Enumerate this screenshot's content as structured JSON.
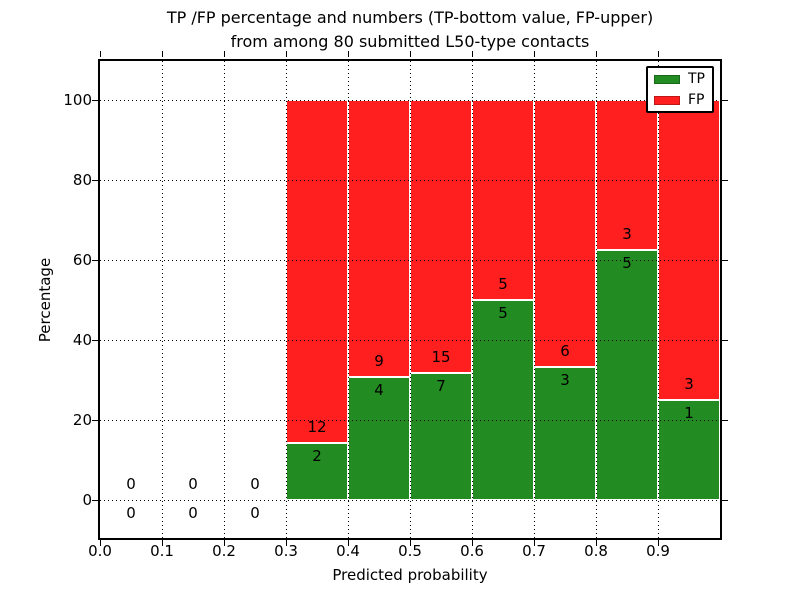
{
  "title_line1": "TP /FP percentage and numbers (TP-bottom value, FP-upper)",
  "title_line2": "from among 80 submitted L50-type contacts",
  "chart_data": {
    "type": "bar",
    "stacked": true,
    "title": "TP /FP percentage and numbers (TP-bottom value, FP-upper)\nfrom among 80 submitted L50-type contacts",
    "xlabel": "Predicted probability",
    "ylabel": "Percentage",
    "total_submitted": 80,
    "xlim": [
      0.0,
      1.0
    ],
    "ylim": [
      -9.5,
      110
    ],
    "grid": "dotted, drawn above bars",
    "x_tick_labels": [
      "0.0",
      "0.1",
      "0.2",
      "0.3",
      "0.4",
      "0.5",
      "0.6",
      "0.7",
      "0.8",
      "0.9"
    ],
    "y_tick_values": [
      0,
      20,
      40,
      60,
      80,
      100
    ],
    "y_tick_labels": [
      "0",
      "20",
      "40",
      "60",
      "80",
      "100"
    ],
    "colors": {
      "TP": "#228B22",
      "FP": "#FF1F1F"
    },
    "bars": [
      {
        "x0": 0.0,
        "x1": 0.1,
        "tp_count": 0,
        "fp_count": 0,
        "tp_pct": 0,
        "fp_pct": 0
      },
      {
        "x0": 0.1,
        "x1": 0.2,
        "tp_count": 0,
        "fp_count": 0,
        "tp_pct": 0,
        "fp_pct": 0
      },
      {
        "x0": 0.2,
        "x1": 0.3,
        "tp_count": 0,
        "fp_count": 0,
        "tp_pct": 0,
        "fp_pct": 0
      },
      {
        "x0": 0.3,
        "x1": 0.4,
        "tp_count": 2,
        "fp_count": 12,
        "tp_pct": 14.29,
        "fp_pct": 85.71
      },
      {
        "x0": 0.4,
        "x1": 0.5,
        "tp_count": 4,
        "fp_count": 9,
        "tp_pct": 30.77,
        "fp_pct": 69.23
      },
      {
        "x0": 0.5,
        "x1": 0.6,
        "tp_count": 7,
        "fp_count": 15,
        "tp_pct": 31.82,
        "fp_pct": 68.18
      },
      {
        "x0": 0.6,
        "x1": 0.7,
        "tp_count": 5,
        "fp_count": 5,
        "tp_pct": 50.0,
        "fp_pct": 50.0
      },
      {
        "x0": 0.7,
        "x1": 0.8,
        "tp_count": 3,
        "fp_count": 6,
        "tp_pct": 33.33,
        "fp_pct": 66.67
      },
      {
        "x0": 0.8,
        "x1": 0.9,
        "tp_count": 5,
        "fp_count": 3,
        "tp_pct": 62.5,
        "fp_pct": 37.5
      },
      {
        "x0": 0.9,
        "x1": 1.0,
        "tp_count": 1,
        "fp_count": 3,
        "tp_pct": 25.0,
        "fp_pct": 75.0
      }
    ],
    "legend": {
      "position": "upper right",
      "entries": [
        {
          "label": "TP",
          "color": "#228B22"
        },
        {
          "label": "FP",
          "color": "#FF1F1F"
        }
      ]
    }
  }
}
